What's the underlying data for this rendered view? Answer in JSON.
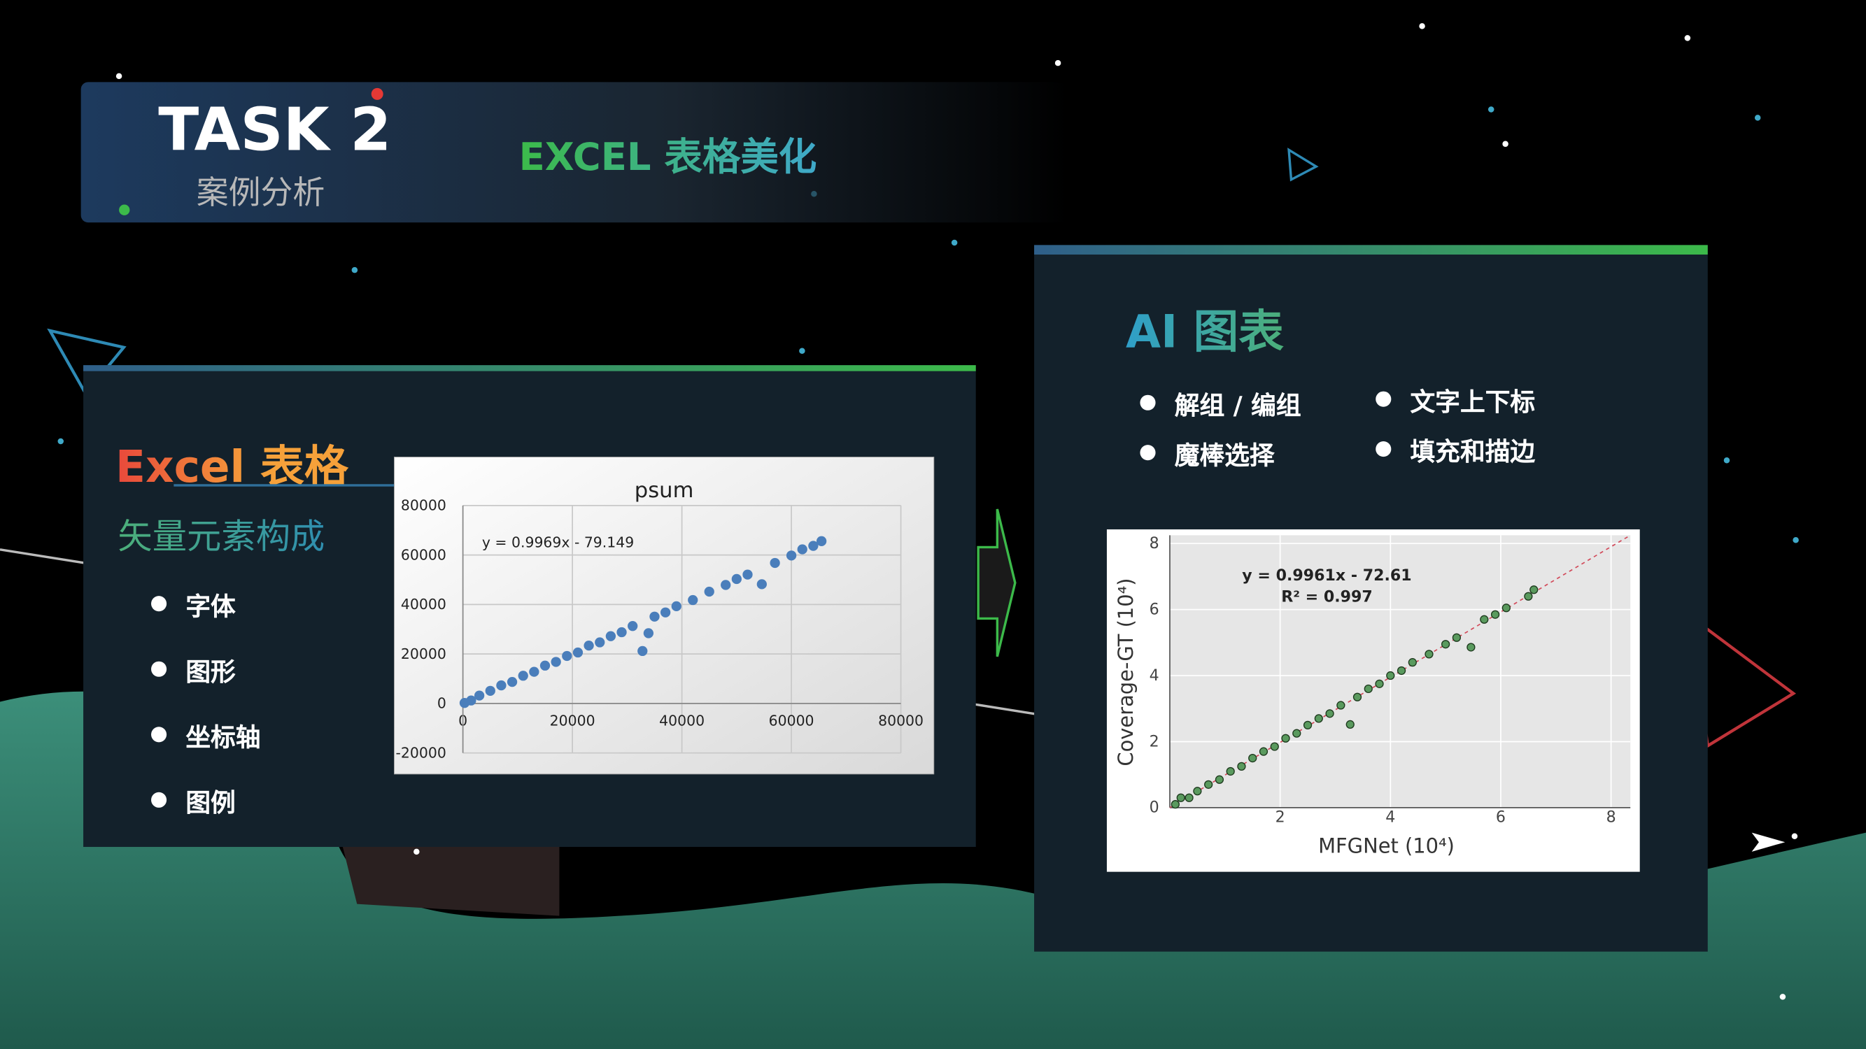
{
  "header": {
    "task": "TASK 2",
    "subtitle": "案例分析",
    "topic": "EXCEL 表格美化"
  },
  "left_panel": {
    "title": "Excel 表格",
    "subtitle": "矢量元素构成",
    "bullets": [
      "字体",
      "图形",
      "坐标轴",
      "图例"
    ]
  },
  "right_panel": {
    "title": "AI 图表",
    "bullets": [
      "解组 / 编组",
      "文字上下标",
      "魔棒选择",
      "填充和描边"
    ]
  },
  "charts": [
    {
      "type": "scatter",
      "title": "psum",
      "annotations": [
        "y = 0.9969x - 79.149"
      ],
      "color": "#4a7ebb",
      "grid": true,
      "xlim": [
        0,
        80000
      ],
      "ylim": [
        -20000,
        80000
      ],
      "xticks": [
        0,
        20000,
        40000,
        60000,
        80000
      ],
      "yticks": [
        -20000,
        0,
        20000,
        40000,
        60000,
        80000
      ],
      "x": [
        300,
        1500,
        3000,
        5000,
        7000,
        9000,
        11000,
        13000,
        15000,
        17000,
        19000,
        21000,
        23000,
        25000,
        27000,
        29000,
        31000,
        32800,
        33900,
        35000,
        37000,
        39000,
        42000,
        45000,
        48000,
        50000,
        52000,
        54600,
        57000,
        60000,
        62000,
        64000,
        65500
      ],
      "values": [
        200,
        1200,
        3200,
        5100,
        7300,
        8700,
        11200,
        12800,
        15300,
        16800,
        19200,
        20600,
        23400,
        24700,
        27200,
        28800,
        31300,
        21200,
        28400,
        35100,
        36800,
        39300,
        41800,
        45200,
        47900,
        50300,
        52100,
        48200,
        56800,
        59800,
        62300,
        63700,
        65600
      ]
    },
    {
      "type": "scatter",
      "annotations": [
        "y = 0.9961x - 72.61",
        "R² = 0.997"
      ],
      "x_label": "MFGNet (10⁴)",
      "y_label": "Coverage-GT (10⁴)",
      "color": "#5a9a5e",
      "grid": true,
      "xlim": [
        0,
        8.35
      ],
      "ylim": [
        0,
        8.25
      ],
      "xticks": [
        2,
        4,
        6,
        8
      ],
      "yticks": [
        0,
        2,
        4,
        6,
        8
      ],
      "x": [
        0.1,
        0.2,
        0.35,
        0.5,
        0.7,
        0.9,
        1.1,
        1.3,
        1.5,
        1.7,
        1.9,
        2.1,
        2.3,
        2.5,
        2.7,
        2.9,
        3.1,
        3.27,
        3.4,
        3.6,
        3.8,
        4.0,
        4.2,
        4.4,
        4.7,
        5.0,
        5.2,
        5.46,
        5.7,
        5.9,
        6.1,
        6.5,
        6.6
      ],
      "values": [
        0.1,
        0.3,
        0.3,
        0.5,
        0.7,
        0.85,
        1.1,
        1.25,
        1.5,
        1.7,
        1.85,
        2.1,
        2.25,
        2.5,
        2.7,
        2.85,
        3.1,
        2.52,
        3.35,
        3.6,
        3.75,
        4.0,
        4.15,
        4.4,
        4.65,
        4.95,
        5.15,
        4.86,
        5.7,
        5.85,
        6.05,
        6.4,
        6.6
      ]
    }
  ]
}
